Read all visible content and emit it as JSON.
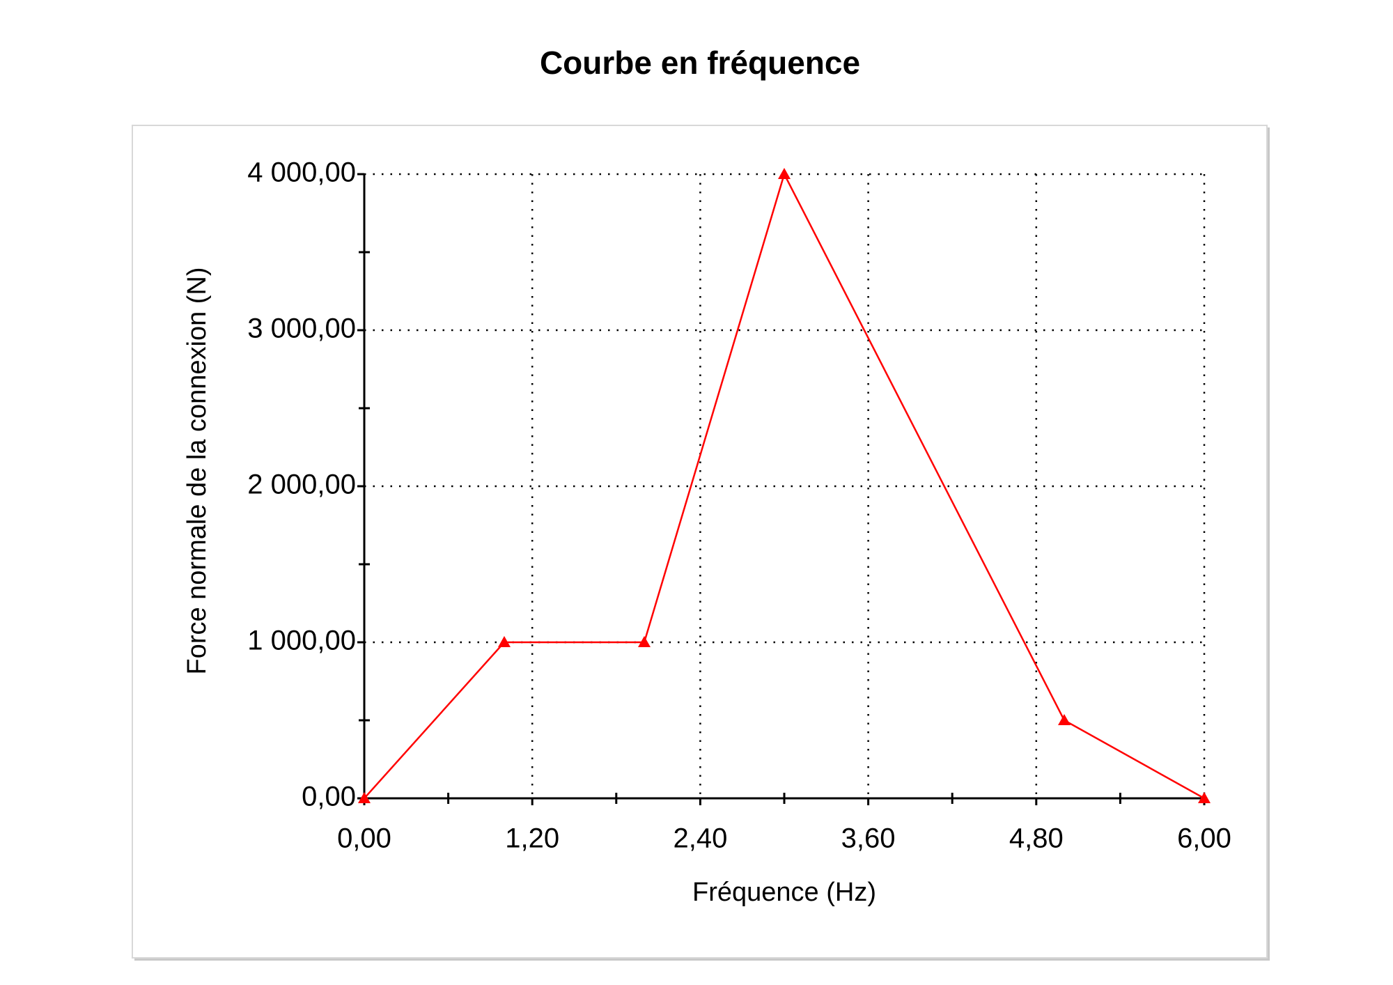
{
  "chart_data": {
    "type": "line",
    "title": "Courbe en fréquence",
    "x_label": "Fréquence (Hz)",
    "y_label": "Force normale de la connexion (N)",
    "x": [
      0,
      1,
      2,
      3,
      5,
      6
    ],
    "series": [
      {
        "color": "#ff0000",
        "marker": "triangle",
        "values": [
          0,
          1000,
          1000,
          4000,
          500,
          0
        ]
      }
    ],
    "xlim": [
      0,
      6
    ],
    "ylim": [
      0,
      4000
    ],
    "xticks": [
      {
        "value": 0,
        "label": "0,00"
      },
      {
        "value": 1.2,
        "label": "1,20"
      },
      {
        "value": 2.4,
        "label": "2,40"
      },
      {
        "value": 3.6,
        "label": "3,60"
      },
      {
        "value": 4.8,
        "label": "4,80"
      },
      {
        "value": 6,
        "label": "6,00"
      }
    ],
    "yticks": [
      {
        "value": 0,
        "label": "0,00"
      },
      {
        "value": 1000,
        "label": "1 000,00"
      },
      {
        "value": 2000,
        "label": "2 000,00"
      },
      {
        "value": 3000,
        "label": "3 000,00"
      },
      {
        "value": 4000,
        "label": "4 000,00"
      }
    ],
    "x_minor_ticks": [
      0.6,
      1.8,
      3,
      4.2,
      5.4
    ],
    "y_minor_ticks": [
      500,
      1500,
      2500,
      3500
    ],
    "grid": true
  }
}
